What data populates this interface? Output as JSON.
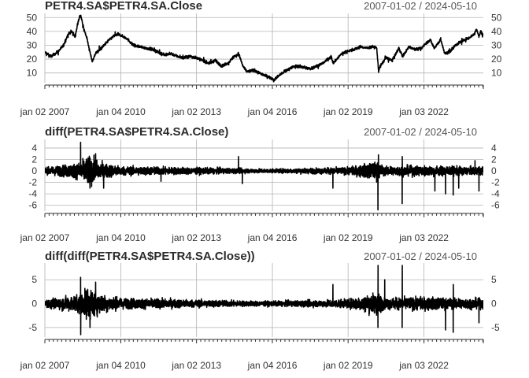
{
  "chart_data": [
    {
      "type": "line",
      "title": "PETR4.SA$PETR4.SA.Close",
      "date_range": "2007-01-02 / 2024-05-10",
      "x_range": [
        "2007-01-02",
        "2024-05-10"
      ],
      "x_ticks": [
        "jan 02 2007",
        "jan 04 2010",
        "jan 02 2013",
        "jan 04 2016",
        "jan 02 2019",
        "jan 03 2022"
      ],
      "x_tick_dates": [
        "2007-01-02",
        "2010-01-04",
        "2013-01-02",
        "2016-01-04",
        "2019-01-02",
        "2022-01-03"
      ],
      "y_ticks": [
        10,
        20,
        30,
        40,
        50
      ],
      "ylim": [
        3,
        53
      ],
      "grid": true,
      "series": [
        {
          "values": [
            [
              "2007-01-02",
              25
            ],
            [
              "2007-04-02",
              22
            ],
            [
              "2007-07-02",
              25
            ],
            [
              "2007-10-01",
              30
            ],
            [
              "2007-12-03",
              38
            ],
            [
              "2008-02-01",
              40
            ],
            [
              "2008-03-14",
              36
            ],
            [
              "2008-05-01",
              48
            ],
            [
              "2008-06-02",
              52
            ],
            [
              "2008-07-01",
              45
            ],
            [
              "2008-09-01",
              35
            ],
            [
              "2008-10-15",
              25
            ],
            [
              "2008-11-20",
              18
            ],
            [
              "2009-01-02",
              24
            ],
            [
              "2009-04-01",
              28
            ],
            [
              "2009-07-01",
              33
            ],
            [
              "2009-10-01",
              37
            ],
            [
              "2009-12-01",
              38
            ],
            [
              "2010-01-04",
              37
            ],
            [
              "2010-04-01",
              35
            ],
            [
              "2010-07-01",
              30
            ],
            [
              "2010-10-01",
              29
            ],
            [
              "2011-01-03",
              28
            ],
            [
              "2011-04-01",
              27
            ],
            [
              "2011-07-01",
              25
            ],
            [
              "2011-10-03",
              23
            ],
            [
              "2012-01-02",
              24
            ],
            [
              "2012-04-02",
              22
            ],
            [
              "2012-07-02",
              21
            ],
            [
              "2012-10-01",
              22
            ],
            [
              "2013-01-02",
              21
            ],
            [
              "2013-04-01",
              19
            ],
            [
              "2013-07-01",
              17
            ],
            [
              "2013-10-01",
              19
            ],
            [
              "2014-01-02",
              15
            ],
            [
              "2014-04-01",
              17
            ],
            [
              "2014-07-01",
              22
            ],
            [
              "2014-09-02",
              24
            ],
            [
              "2014-11-03",
              15
            ],
            [
              "2015-01-02",
              11
            ],
            [
              "2015-04-01",
              12
            ],
            [
              "2015-07-01",
              10
            ],
            [
              "2015-10-01",
              8
            ],
            [
              "2016-01-04",
              6
            ],
            [
              "2016-02-01",
              5
            ],
            [
              "2016-04-01",
              8
            ],
            [
              "2016-07-01",
              11
            ],
            [
              "2016-10-03",
              14
            ],
            [
              "2017-01-02",
              15
            ],
            [
              "2017-04-03",
              14
            ],
            [
              "2017-07-03",
              13
            ],
            [
              "2017-10-02",
              15
            ],
            [
              "2018-01-02",
              17
            ],
            [
              "2018-05-02",
              22
            ],
            [
              "2018-06-01",
              17
            ],
            [
              "2018-10-01",
              24
            ],
            [
              "2019-01-02",
              26
            ],
            [
              "2019-04-01",
              27
            ],
            [
              "2019-07-01",
              29
            ],
            [
              "2019-10-01",
              28
            ],
            [
              "2020-01-02",
              29
            ],
            [
              "2020-02-20",
              28
            ],
            [
              "2020-03-18",
              11
            ],
            [
              "2020-04-01",
              14
            ],
            [
              "2020-07-01",
              21
            ],
            [
              "2020-10-01",
              19
            ],
            [
              "2021-01-04",
              28
            ],
            [
              "2021-03-01",
              22
            ],
            [
              "2021-06-01",
              29
            ],
            [
              "2021-09-01",
              27
            ],
            [
              "2021-12-01",
              28
            ],
            [
              "2022-01-03",
              30
            ],
            [
              "2022-04-01",
              34
            ],
            [
              "2022-06-01",
              28
            ],
            [
              "2022-09-01",
              34
            ],
            [
              "2022-11-01",
              24
            ],
            [
              "2023-01-02",
              25
            ],
            [
              "2023-04-03",
              30
            ],
            [
              "2023-07-03",
              33
            ],
            [
              "2023-10-02",
              35
            ],
            [
              "2024-01-02",
              38
            ],
            [
              "2024-02-01",
              42
            ],
            [
              "2024-03-08",
              36
            ],
            [
              "2024-04-01",
              40
            ],
            [
              "2024-05-10",
              37
            ]
          ]
        }
      ]
    },
    {
      "type": "line",
      "title": "diff(PETR4.SA$PETR4.SA.Close)",
      "date_range": "2007-01-02 / 2024-05-10",
      "x_range": [
        "2007-01-02",
        "2024-05-10"
      ],
      "x_ticks": [
        "jan 02 2007",
        "jan 04 2010",
        "jan 02 2013",
        "jan 04 2016",
        "jan 02 2019",
        "jan 03 2022"
      ],
      "x_tick_dates": [
        "2007-01-02",
        "2010-01-04",
        "2013-01-02",
        "2016-01-04",
        "2019-01-02",
        "2022-01-03"
      ],
      "y_ticks": [
        -6,
        -4,
        -2,
        0,
        2,
        4
      ],
      "ylim": [
        -7,
        5.5
      ],
      "grid": true,
      "volatility": [
        [
          "2007-01-02",
          0.5
        ],
        [
          "2008-05-01",
          1.2
        ],
        [
          "2008-10-01",
          2.2
        ],
        [
          "2009-04-01",
          1.2
        ],
        [
          "2010-01-04",
          0.7
        ],
        [
          "2013-01-02",
          0.5
        ],
        [
          "2015-01-02",
          0.35
        ],
        [
          "2016-01-04",
          0.3
        ],
        [
          "2018-01-02",
          0.45
        ],
        [
          "2019-01-02",
          0.55
        ],
        [
          "2020-03-01",
          1.4
        ],
        [
          "2020-06-01",
          0.7
        ],
        [
          "2022-01-03",
          0.8
        ],
        [
          "2023-01-02",
          0.7
        ],
        [
          "2024-05-10",
          0.6
        ]
      ],
      "spikes": [
        [
          "2008-06-02",
          5
        ],
        [
          "2008-10-15",
          -3
        ],
        [
          "2009-01-05",
          3
        ],
        [
          "2009-05-01",
          -3
        ],
        [
          "2011-08-08",
          -1.8
        ],
        [
          "2014-09-01",
          2.5
        ],
        [
          "2014-10-27",
          -2.2
        ],
        [
          "2018-05-28",
          -3
        ],
        [
          "2020-03-09",
          -6.8
        ],
        [
          "2020-03-16",
          2.8
        ],
        [
          "2021-02-22",
          -5.7
        ],
        [
          "2021-02-23",
          2.5
        ],
        [
          "2022-06-10",
          -3.5
        ],
        [
          "2022-11-11",
          -4
        ],
        [
          "2023-03-02",
          -4.2
        ],
        [
          "2023-05-20",
          -3
        ],
        [
          "2024-03-08",
          -3.5
        ],
        [
          "2024-01-10",
          1.8
        ]
      ]
    },
    {
      "type": "line",
      "title": "diff(diff(PETR4.SA$PETR4.SA.Close))",
      "date_range": "2007-01-02 / 2024-05-10",
      "x_range": [
        "2007-01-02",
        "2024-05-10"
      ],
      "x_ticks": [
        "jan 02 2007",
        "jan 04 2010",
        "jan 02 2013",
        "jan 04 2016",
        "jan 02 2019",
        "jan 03 2022"
      ],
      "x_tick_dates": [
        "2007-01-02",
        "2010-01-04",
        "2013-01-02",
        "2016-01-04",
        "2019-01-02",
        "2022-01-03"
      ],
      "y_ticks": [
        -5,
        0,
        5
      ],
      "ylim": [
        -7,
        8.5
      ],
      "grid": true,
      "volatility": [
        [
          "2007-01-02",
          0.7
        ],
        [
          "2008-05-01",
          1.6
        ],
        [
          "2008-10-01",
          3.0
        ],
        [
          "2009-04-01",
          1.6
        ],
        [
          "2010-01-04",
          1.0
        ],
        [
          "2013-01-02",
          0.7
        ],
        [
          "2015-01-02",
          0.5
        ],
        [
          "2016-01-04",
          0.45
        ],
        [
          "2018-01-02",
          0.65
        ],
        [
          "2019-01-02",
          0.8
        ],
        [
          "2020-03-01",
          2.0
        ],
        [
          "2020-06-01",
          1.0
        ],
        [
          "2022-01-03",
          1.2
        ],
        [
          "2023-01-02",
          1.0
        ],
        [
          "2024-05-10",
          0.9
        ]
      ],
      "spikes": [
        [
          "2008-06-02",
          5.5
        ],
        [
          "2008-06-03",
          -6.5
        ],
        [
          "2008-10-15",
          -5
        ],
        [
          "2009-01-05",
          4.5
        ],
        [
          "2020-03-09",
          -5
        ],
        [
          "2020-03-10",
          8
        ],
        [
          "2020-06-15",
          5
        ],
        [
          "2021-02-22",
          -5
        ],
        [
          "2021-02-23",
          8
        ],
        [
          "2022-11-11",
          -5.5
        ],
        [
          "2023-03-02",
          -6
        ],
        [
          "2023-03-03",
          4
        ],
        [
          "2024-03-08",
          -4
        ],
        [
          "2018-05-28",
          4
        ]
      ]
    }
  ]
}
